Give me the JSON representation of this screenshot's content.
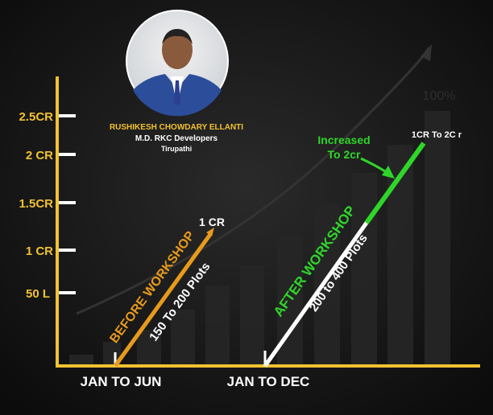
{
  "profile": {
    "name": "RUSHIKESH CHOWDARY ELLANTI",
    "role": "M.D. RKC Developers",
    "location": "Tirupathi"
  },
  "background": {
    "watermark_label": "100%"
  },
  "colors": {
    "axis": "#f2c230",
    "before": "#e89a1c",
    "after": "#ffffff",
    "increase": "#2fd62a",
    "background": "#151515"
  },
  "chart_data": {
    "type": "line",
    "title": "",
    "y_tick_labels": [
      "50 L",
      "1 CR",
      "1.5CR",
      "2 CR",
      "2.5CR"
    ],
    "x_tick_labels": [
      "JAN TO JUN",
      "JAN TO DEC"
    ],
    "grid": false,
    "series": [
      {
        "name": "BEFORE WORKSHOP",
        "sublabel": "150 To 200 Plots",
        "end_label": "1 CR",
        "color": "#e89a1c"
      },
      {
        "name": "AFTER WORKSHOP",
        "sublabel": "200 to 400 Plots",
        "end_label": "1CR To 2C r",
        "color": "#ffffff",
        "highlight_color": "#2fd62a"
      }
    ],
    "annotation": {
      "line1": "Increased",
      "line2": "To 2cr"
    }
  }
}
